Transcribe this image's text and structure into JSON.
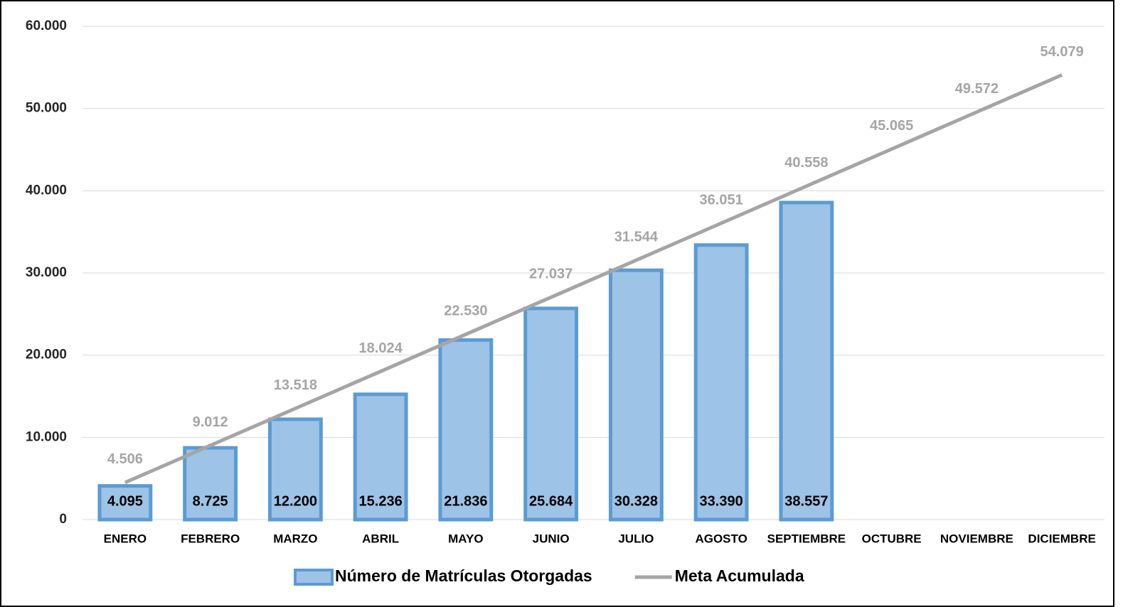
{
  "chart_data": {
    "type": "bar",
    "categories": [
      "ENERO",
      "FEBRERO",
      "MARZO",
      "ABRIL",
      "MAYO",
      "JUNIO",
      "JULIO",
      "AGOSTO",
      "SEPTIEMBRE",
      "OCTUBRE",
      "NOVIEMBRE",
      "DICIEMBRE"
    ],
    "series": [
      {
        "name": "Número de Matrículas Otorgadas",
        "type": "bar",
        "color": "#9dc3e6",
        "edge_color": "#5b9bd5",
        "values": [
          4095,
          8725,
          12200,
          15236,
          21836,
          25684,
          30328,
          33390,
          38557,
          null,
          null,
          null
        ],
        "value_labels": [
          "4.095",
          "8.725",
          "12.200",
          "15.236",
          "21.836",
          "25.684",
          "30.328",
          "33.390",
          "38.557",
          null,
          null,
          null
        ]
      },
      {
        "name": "Meta Acumulada",
        "type": "line",
        "color": "#a5a5a5",
        "values": [
          4506,
          9012,
          13518,
          18024,
          22530,
          27037,
          31544,
          36051,
          40558,
          45065,
          49572,
          54079
        ],
        "value_labels": [
          "4.506",
          "9.012",
          "13.518",
          "18.024",
          "22.530",
          "27.037",
          "31.544",
          "36.051",
          "40.558",
          "45.065",
          "49.572",
          "54.079"
        ]
      }
    ],
    "ylim": [
      0,
      60000
    ],
    "yticks": [
      0,
      {
        "value": 10000,
        "label": "10.000"
      },
      {
        "value": 20000,
        "label": "20.000"
      },
      {
        "value": 30000,
        "label": "30.000"
      },
      {
        "value": 40000,
        "label": "40.000"
      },
      {
        "value": 50000,
        "label": "50.000"
      },
      {
        "value": 60000,
        "label": "60.000"
      }
    ],
    "grid": true,
    "legend": "bottom"
  }
}
